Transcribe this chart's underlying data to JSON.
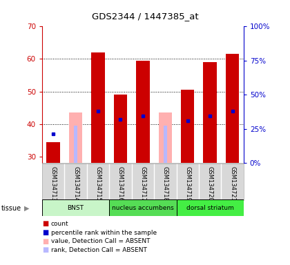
{
  "title": "GDS2344 / 1447385_at",
  "samples": [
    "GSM134713",
    "GSM134714",
    "GSM134715",
    "GSM134716",
    "GSM134717",
    "GSM134718",
    "GSM134719",
    "GSM134720",
    "GSM134721"
  ],
  "red_bars": [
    34.5,
    0,
    62,
    49,
    59.5,
    0,
    50.5,
    59,
    61.5
  ],
  "pink_bars": [
    0,
    43.5,
    0,
    0,
    0,
    43.5,
    0,
    0,
    0
  ],
  "blue_dots_y": [
    37,
    0,
    44,
    41.5,
    42.5,
    0,
    41,
    42.5,
    44
  ],
  "light_blue_bars": [
    0,
    39.5,
    0,
    0,
    0,
    39.5,
    0,
    0,
    0
  ],
  "absent_mask": [
    false,
    true,
    false,
    false,
    false,
    true,
    false,
    false,
    false
  ],
  "tissue_groups": [
    {
      "label": "BNST",
      "start": 0,
      "end": 3,
      "color": "#c8f5c8"
    },
    {
      "label": "nucleus accumbens",
      "start": 3,
      "end": 6,
      "color": "#55dd55"
    },
    {
      "label": "dorsal striatum",
      "start": 6,
      "end": 9,
      "color": "#44ee44"
    }
  ],
  "ymin": 28,
  "ymax": 70,
  "yticks_left": [
    30,
    40,
    50,
    60,
    70
  ],
  "grid_lines": [
    40,
    50,
    60
  ],
  "bar_width": 0.6,
  "left_tick_color": "#cc0000",
  "right_tick_color": "#0000cc",
  "legend_labels": [
    "count",
    "percentile rank within the sample",
    "value, Detection Call = ABSENT",
    "rank, Detection Call = ABSENT"
  ],
  "legend_colors": [
    "#cc0000",
    "#0000cc",
    "#ffb0b0",
    "#b8b8ff"
  ]
}
